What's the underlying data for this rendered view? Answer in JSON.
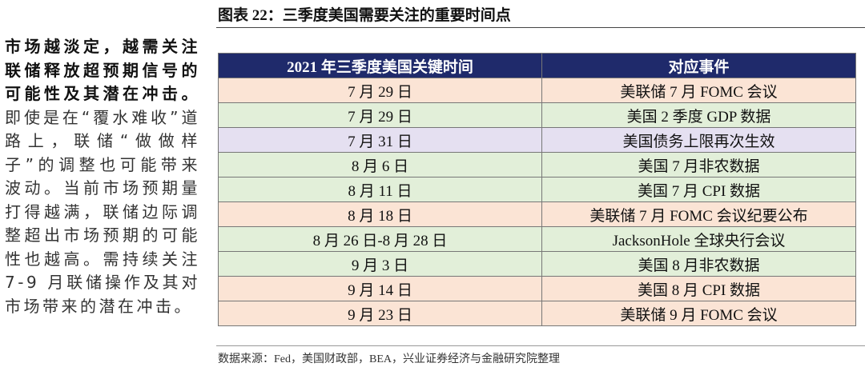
{
  "header": {
    "title": "图表 22：三季度美国需要关注的重要时间点"
  },
  "sidebar": {
    "bold": "市场越淡定，越需关注联储释放超预期信号的可能性及其潜在冲击。",
    "text": "即使是在“覆水难收”道路上，联储“做做样子”的调整也可能带来波动。当前市场预期量打得越满，联储边际调整超出市场预期的可能性也越高。需持续关注 7-9 月联储操作及其对市场带来的潜在冲击。"
  },
  "table": {
    "headers": [
      "2021 年三季度美国关键时间",
      "对应事件"
    ],
    "rows": [
      [
        "7 月 29 日",
        "美联储 7 月 FOMC 会议"
      ],
      [
        "7 月 29 日",
        "美国 2 季度 GDP 数据"
      ],
      [
        "7 月 31 日",
        "美国债务上限再次生效"
      ],
      [
        "8 月 6 日",
        "美国 7 月非农数据"
      ],
      [
        "8 月 11 日",
        "美国 7 月 CPI 数据"
      ],
      [
        "8 月 18 日",
        "美联储 7 月 FOMC 会议纪要公布"
      ],
      [
        "8 月 26 日-8 月 28 日",
        "JacksonHole 全球央行会议"
      ],
      [
        "9 月 3 日",
        "美国 8 月非农数据"
      ],
      [
        "9 月 14 日",
        "美国 8 月 CPI 数据"
      ],
      [
        "9 月 23 日",
        "美联储 9 月 FOMC 会议"
      ]
    ]
  },
  "source": "数据来源：Fed，美国财政部，BEA，兴业证券经济与金融研究院整理"
}
